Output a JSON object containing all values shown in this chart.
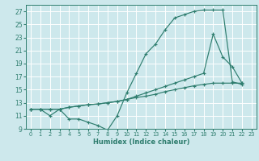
{
  "xlabel": "Humidex (Indice chaleur)",
  "bg_color": "#cde8ec",
  "grid_color": "#ffffff",
  "line_color": "#2e7d6e",
  "xlim": [
    -0.5,
    23.5
  ],
  "ylim": [
    9,
    28
  ],
  "xticks": [
    0,
    1,
    2,
    3,
    4,
    5,
    6,
    7,
    8,
    9,
    10,
    11,
    12,
    13,
    14,
    15,
    16,
    17,
    18,
    19,
    20,
    21,
    22,
    23
  ],
  "yticks": [
    9,
    11,
    13,
    15,
    17,
    19,
    21,
    23,
    25,
    27
  ],
  "series": [
    {
      "x": [
        0,
        1,
        2,
        3,
        4,
        5,
        6,
        7,
        8,
        9,
        10,
        11,
        12,
        13,
        14,
        15,
        16,
        17,
        18,
        19,
        20,
        21,
        22
      ],
      "y": [
        12,
        12,
        11,
        12,
        10.5,
        10.5,
        10,
        9.5,
        8.8,
        11,
        14.5,
        17.5,
        20.5,
        22,
        24.2,
        26,
        26.5,
        27,
        27.2,
        27.2,
        27.2,
        16.2,
        15.8
      ]
    },
    {
      "x": [
        0,
        1,
        2,
        3,
        4,
        5,
        6,
        7,
        8,
        9,
        10,
        11,
        12,
        13,
        14,
        15,
        16,
        17,
        18,
        19,
        20,
        21,
        22
      ],
      "y": [
        12,
        12,
        12,
        12,
        12.3,
        12.5,
        12.7,
        12.8,
        13,
        13.2,
        13.5,
        13.8,
        14,
        14.3,
        14.7,
        15,
        15.3,
        15.6,
        15.8,
        16,
        16,
        16,
        16
      ]
    },
    {
      "x": [
        0,
        1,
        2,
        3,
        4,
        5,
        6,
        7,
        8,
        9,
        10,
        11,
        12,
        13,
        14,
        15,
        16,
        17,
        18,
        19,
        20,
        21,
        22
      ],
      "y": [
        12,
        12,
        12,
        12,
        12.3,
        12.5,
        12.7,
        12.8,
        13,
        13.2,
        13.5,
        14,
        14.5,
        15,
        15.5,
        16,
        16.5,
        17,
        17.5,
        23.5,
        20,
        18.5,
        16
      ]
    }
  ]
}
